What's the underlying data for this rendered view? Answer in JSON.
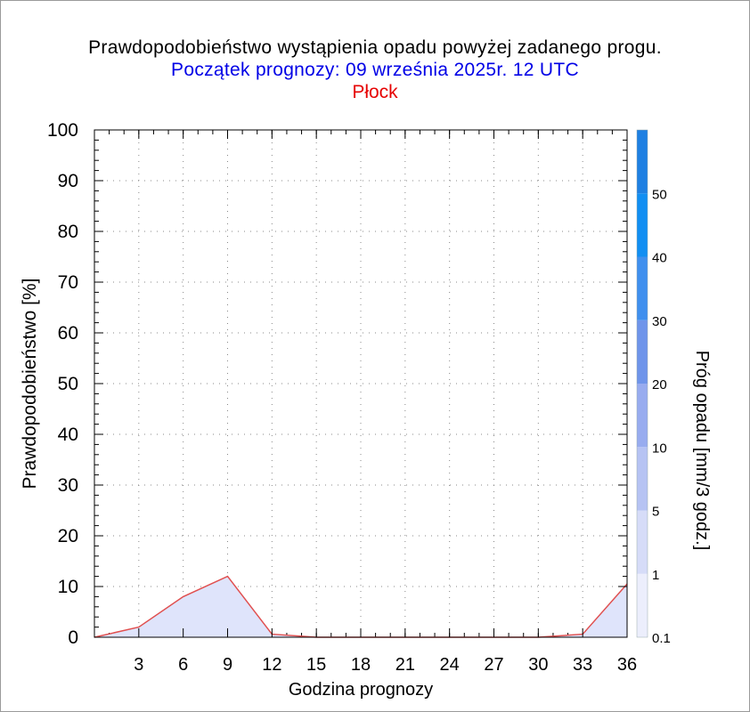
{
  "chart_data": {
    "type": "area",
    "title": "Prawdopodobieństwo wystąpienia opadu powyżej zadanego progu.",
    "subtitle": "Początek prognozy: 09 września 2025r. 12 UTC",
    "location": "Płock",
    "xlabel": "Godzina prognozy",
    "ylabel": "Prawdopodobieństwo [%]",
    "xlim": [
      0,
      36
    ],
    "ylim": [
      0,
      100
    ],
    "xticks": [
      "3",
      "6",
      "9",
      "12",
      "15",
      "18",
      "21",
      "24",
      "27",
      "30",
      "33",
      "36"
    ],
    "yticks": [
      "0",
      "10",
      "20",
      "30",
      "40",
      "50",
      "60",
      "70",
      "80",
      "90",
      "100"
    ],
    "series": [
      {
        "x": [
          0,
          3,
          6,
          9,
          12,
          15,
          18,
          21,
          24,
          27,
          30,
          33,
          36
        ],
        "values": [
          0,
          2,
          8,
          12,
          0.6,
          0,
          0,
          0,
          0,
          0,
          0,
          0.6,
          10.5
        ],
        "fill_color": "#dfe4fb",
        "line_color": "#e05050"
      }
    ],
    "colorbar": {
      "label": "Próg opadu [mm/3 godz.]",
      "tick_labels": [
        "0.1",
        "1",
        "5",
        "10",
        "20",
        "30",
        "40",
        "50"
      ],
      "colors": [
        "#eceefc",
        "#d6dcf8",
        "#b6c3f3",
        "#98acef",
        "#6f95ea",
        "#3f90ee",
        "#118ff2",
        "#1e80e2",
        "#1769d2",
        "#155cc2",
        "#1048ae"
      ]
    },
    "grid": true
  }
}
